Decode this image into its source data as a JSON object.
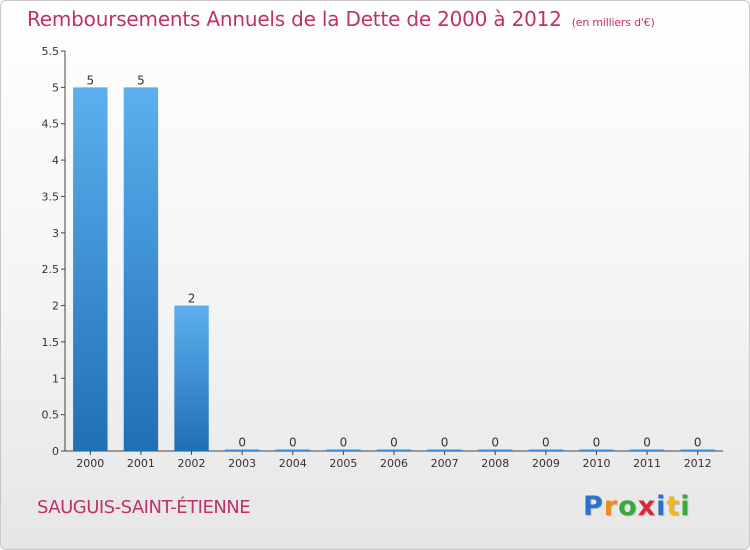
{
  "chart_data": {
    "type": "bar",
    "title": "Remboursements Annuels de la Dette de 2000 à 2012",
    "subtitle": "(en milliers d'€)",
    "categories": [
      "2000",
      "2001",
      "2002",
      "2003",
      "2004",
      "2005",
      "2006",
      "2007",
      "2008",
      "2009",
      "2010",
      "2011",
      "2012"
    ],
    "values": [
      5,
      5,
      2,
      0,
      0,
      0,
      0,
      0,
      0,
      0,
      0,
      0,
      0
    ],
    "data_labels": [
      "5",
      "5",
      "2",
      "0",
      "0",
      "0",
      "0",
      "0",
      "0",
      "0",
      "0",
      "0",
      "0"
    ],
    "ylim": [
      0,
      5.5
    ],
    "yticks": [
      0,
      0.5,
      1,
      1.5,
      2,
      2.5,
      3,
      3.5,
      4,
      4.5,
      5,
      5.5
    ],
    "ytick_labels": [
      "0",
      "0.5",
      "1",
      "1.5",
      "2",
      "2.5",
      "3",
      "3.5",
      "4",
      "4.5",
      "5",
      "5.5"
    ],
    "xlabel": "",
    "ylabel": "",
    "grid": false,
    "legend": "none",
    "bar_color": "#3a8fd6"
  },
  "footer": {
    "commune": "SAUGUIS-SAINT-ÉTIENNE"
  },
  "logo": {
    "letters": [
      "P",
      "r",
      "o",
      "x",
      "i",
      "t",
      "i"
    ],
    "colors": [
      "#2e6fc9",
      "#f08a1c",
      "#3aa83a",
      "#d8283a",
      "#2e6fc9",
      "#f0b81c",
      "#3aa83a"
    ]
  }
}
